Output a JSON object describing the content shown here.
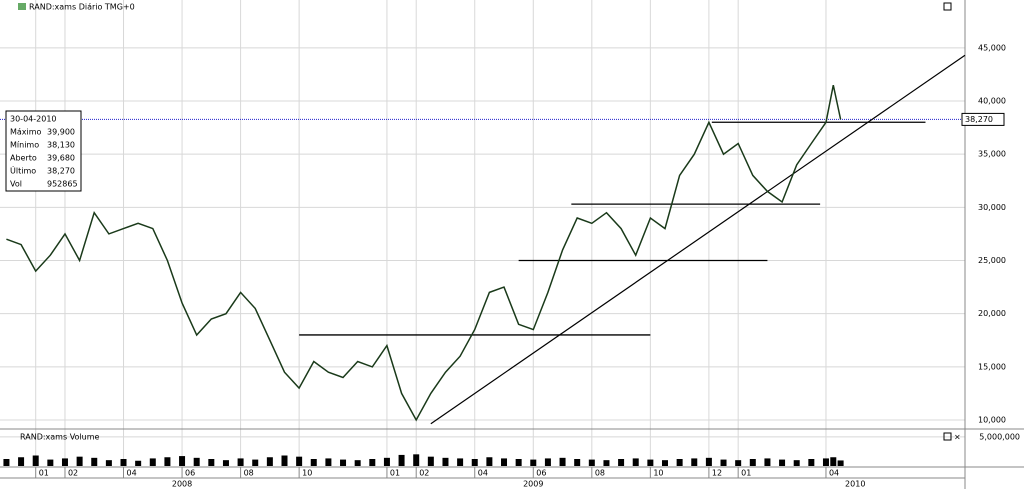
{
  "chart_data": {
    "type": "line",
    "title": "RAND:xams Diário TMG+0",
    "volume_title": "RAND:xams Volume",
    "x": [
      -1,
      -0.5,
      0,
      0.5,
      1,
      1.5,
      2,
      2.5,
      3,
      3.5,
      4,
      4.5,
      5,
      5.5,
      6,
      6.5,
      7,
      7.5,
      8,
      8.5,
      9,
      9.5,
      10,
      10.5,
      11,
      11.5,
      12,
      12.5,
      13,
      13.5,
      14,
      14.5,
      15,
      15.5,
      16,
      16.5,
      17,
      17.5,
      18,
      18.5,
      19,
      19.5,
      20,
      20.5,
      21,
      21.5,
      22,
      22.5,
      23,
      23.5,
      24,
      24.5,
      25,
      25.5,
      26,
      26.5,
      27,
      27.25,
      27.5
    ],
    "series": [
      {
        "name": "RAND:xams",
        "color": "#1a3a1a",
        "values": [
          27000,
          26500,
          24000,
          25500,
          27500,
          25000,
          29500,
          27500,
          28000,
          28500,
          28000,
          25000,
          21000,
          18000,
          19500,
          20000,
          22000,
          20500,
          17500,
          14500,
          13000,
          15500,
          14500,
          14000,
          15500,
          15000,
          17000,
          12500,
          10000,
          12500,
          14500,
          16000,
          18500,
          22000,
          22500,
          19000,
          18500,
          22000,
          26000,
          29000,
          28500,
          29500,
          28000,
          25500,
          29000,
          28000,
          33000,
          35000,
          38000,
          35000,
          36000,
          33000,
          31500,
          30500,
          34000,
          36000,
          38000,
          41500,
          38270
        ]
      },
      {
        "name": "Volume",
        "color": "#000000",
        "axis": "y2",
        "values": [
          1200000,
          1500000,
          1800000,
          1100000,
          1300000,
          1600000,
          1400000,
          1000000,
          1200000,
          900000,
          1300000,
          1500000,
          1700000,
          1400000,
          1200000,
          1000000,
          1300000,
          1100000,
          1500000,
          1800000,
          1600000,
          1200000,
          1300000,
          1100000,
          1000000,
          1200000,
          1400000,
          1900000,
          2000000,
          1600000,
          1400000,
          1300000,
          1200000,
          1500000,
          1300000,
          1200000,
          1100000,
          1300000,
          1400000,
          1200000,
          1100000,
          1000000,
          1200000,
          1300000,
          1100000,
          1000000,
          1200000,
          1300000,
          1400000,
          1100000,
          1000000,
          1200000,
          1300000,
          1100000,
          1000000,
          1200000,
          1300000,
          1500000,
          952865
        ]
      }
    ],
    "xlim": [
      -1.22,
      31.75
    ],
    "xticks": [
      {
        "value": 0,
        "label": "01"
      },
      {
        "value": 1,
        "label": "02"
      },
      {
        "value": 3,
        "label": "04"
      },
      {
        "value": 5,
        "label": "06"
      },
      {
        "value": 7,
        "label": "08"
      },
      {
        "value": 9,
        "label": "10"
      },
      {
        "value": 12,
        "label": "01"
      },
      {
        "value": 13,
        "label": "02"
      },
      {
        "value": 15,
        "label": "04"
      },
      {
        "value": 17,
        "label": "06"
      },
      {
        "value": 19,
        "label": "08"
      },
      {
        "value": 21,
        "label": "10"
      },
      {
        "value": 23,
        "label": "12"
      },
      {
        "value": 24,
        "label": "01"
      },
      {
        "value": 27,
        "label": "04"
      }
    ],
    "year_ticks": [
      {
        "value": 5,
        "label": "2008"
      },
      {
        "value": 17,
        "label": "2009"
      },
      {
        "value": 28,
        "label": "2010"
      }
    ],
    "ylim": [
      9250,
      48370
    ],
    "yticks": [
      {
        "value": 10000,
        "label": "10,000"
      },
      {
        "value": 15000,
        "label": "15,000"
      },
      {
        "value": 20000,
        "label": "20,000"
      },
      {
        "value": 25000,
        "label": "25,000"
      },
      {
        "value": 30000,
        "label": "30,000"
      },
      {
        "value": 35000,
        "label": "35,000"
      },
      {
        "value": 40000,
        "label": "40,000"
      },
      {
        "value": 45000,
        "label": "45,000"
      }
    ],
    "y2lim": [
      0,
      6000000
    ],
    "y2ticks": [
      {
        "value": 5000000,
        "label": "5,000,000"
      }
    ],
    "last_price": {
      "value": 38270,
      "label": "38,270"
    },
    "hlines": [
      {
        "y": 38000,
        "x": [
          23.1,
          30.4
        ]
      },
      {
        "y": 30300,
        "x": [
          18.3,
          26.8
        ]
      },
      {
        "y": 25000,
        "x": [
          16.5,
          25.0
        ]
      },
      {
        "y": 18000,
        "x": [
          9.0,
          21.0
        ]
      }
    ],
    "trendline": {
      "x": [
        13.5,
        31.75
      ],
      "y": [
        9650,
        44300
      ]
    },
    "info": {
      "date": "30-04-2010",
      "rows": [
        [
          "Máximo",
          "39,900"
        ],
        [
          "Mínimo",
          "38,130"
        ],
        [
          "Aberto",
          "39,680"
        ],
        [
          "Último",
          "38,270"
        ],
        [
          "Vol",
          "952865"
        ]
      ]
    },
    "grid": true
  }
}
